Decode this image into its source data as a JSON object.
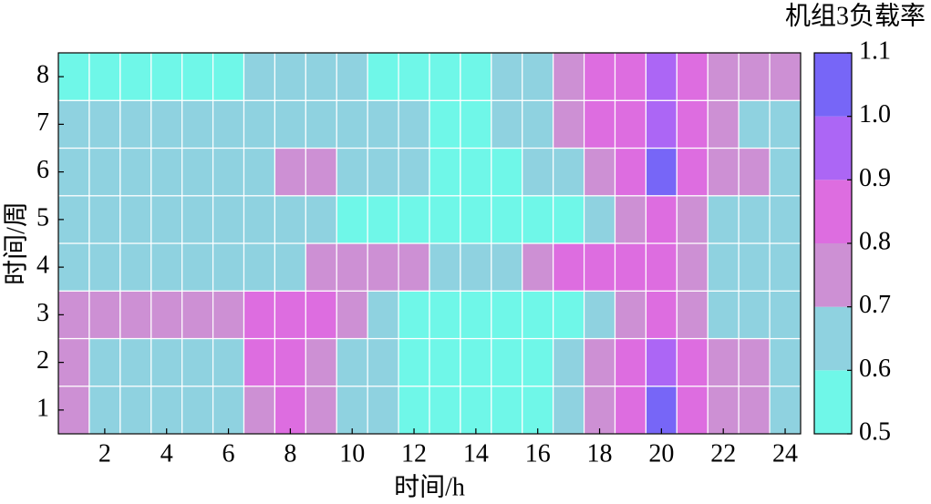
{
  "chart_data": {
    "type": "heatmap",
    "xlabel": "时间/h",
    "ylabel": "时间/周",
    "colorbar_title": "机组3负载率",
    "x": [
      1,
      2,
      3,
      4,
      5,
      6,
      7,
      8,
      9,
      10,
      11,
      12,
      13,
      14,
      15,
      16,
      17,
      18,
      19,
      20,
      21,
      22,
      23,
      24
    ],
    "y": [
      1,
      2,
      3,
      4,
      5,
      6,
      7,
      8
    ],
    "xlim": [
      0.5,
      24.5
    ],
    "ylim": [
      0.5,
      8.5
    ],
    "xticks": [
      2,
      4,
      6,
      8,
      10,
      12,
      14,
      16,
      18,
      20,
      22,
      24
    ],
    "yticks": [
      1,
      2,
      3,
      4,
      5,
      6,
      7,
      8
    ],
    "values": [
      [
        0.75,
        0.65,
        0.65,
        0.65,
        0.65,
        0.65,
        0.75,
        0.85,
        0.75,
        0.65,
        0.65,
        0.55,
        0.55,
        0.55,
        0.55,
        0.55,
        0.65,
        0.75,
        0.85,
        1.05,
        0.85,
        0.75,
        0.75,
        0.65
      ],
      [
        0.75,
        0.65,
        0.65,
        0.65,
        0.65,
        0.65,
        0.85,
        0.85,
        0.75,
        0.65,
        0.65,
        0.55,
        0.55,
        0.55,
        0.55,
        0.55,
        0.65,
        0.75,
        0.85,
        0.95,
        0.85,
        0.75,
        0.75,
        0.65
      ],
      [
        0.75,
        0.75,
        0.75,
        0.75,
        0.75,
        0.75,
        0.85,
        0.85,
        0.85,
        0.75,
        0.65,
        0.55,
        0.55,
        0.55,
        0.55,
        0.55,
        0.55,
        0.65,
        0.75,
        0.85,
        0.75,
        0.65,
        0.65,
        0.65
      ],
      [
        0.65,
        0.65,
        0.65,
        0.65,
        0.65,
        0.65,
        0.65,
        0.65,
        0.75,
        0.75,
        0.75,
        0.75,
        0.65,
        0.65,
        0.65,
        0.75,
        0.85,
        0.85,
        0.85,
        0.85,
        0.75,
        0.65,
        0.65,
        0.65
      ],
      [
        0.65,
        0.65,
        0.65,
        0.65,
        0.65,
        0.65,
        0.65,
        0.65,
        0.65,
        0.55,
        0.55,
        0.55,
        0.55,
        0.55,
        0.55,
        0.55,
        0.55,
        0.65,
        0.75,
        0.85,
        0.75,
        0.65,
        0.65,
        0.65
      ],
      [
        0.65,
        0.65,
        0.65,
        0.65,
        0.65,
        0.65,
        0.65,
        0.75,
        0.75,
        0.65,
        0.65,
        0.65,
        0.55,
        0.55,
        0.55,
        0.65,
        0.65,
        0.75,
        0.85,
        1.05,
        0.85,
        0.75,
        0.75,
        0.65
      ],
      [
        0.65,
        0.65,
        0.65,
        0.65,
        0.65,
        0.65,
        0.65,
        0.65,
        0.65,
        0.65,
        0.65,
        0.65,
        0.55,
        0.55,
        0.65,
        0.65,
        0.75,
        0.85,
        0.85,
        0.95,
        0.85,
        0.75,
        0.65,
        0.65
      ],
      [
        0.55,
        0.55,
        0.55,
        0.55,
        0.55,
        0.55,
        0.65,
        0.65,
        0.65,
        0.65,
        0.55,
        0.55,
        0.55,
        0.55,
        0.65,
        0.65,
        0.75,
        0.85,
        0.85,
        0.95,
        0.85,
        0.75,
        0.75,
        0.75
      ]
    ],
    "levels": [
      0.5,
      0.6,
      0.7,
      0.8,
      0.9,
      {
        "value": 1,
        "label": "1.0"
      },
      1.1
    ],
    "colors": [
      "#6ff7e8",
      "#8fd2e0",
      "#cd90d4",
      "#dd6de0",
      "#ac66f5",
      "#7766f7"
    ]
  }
}
